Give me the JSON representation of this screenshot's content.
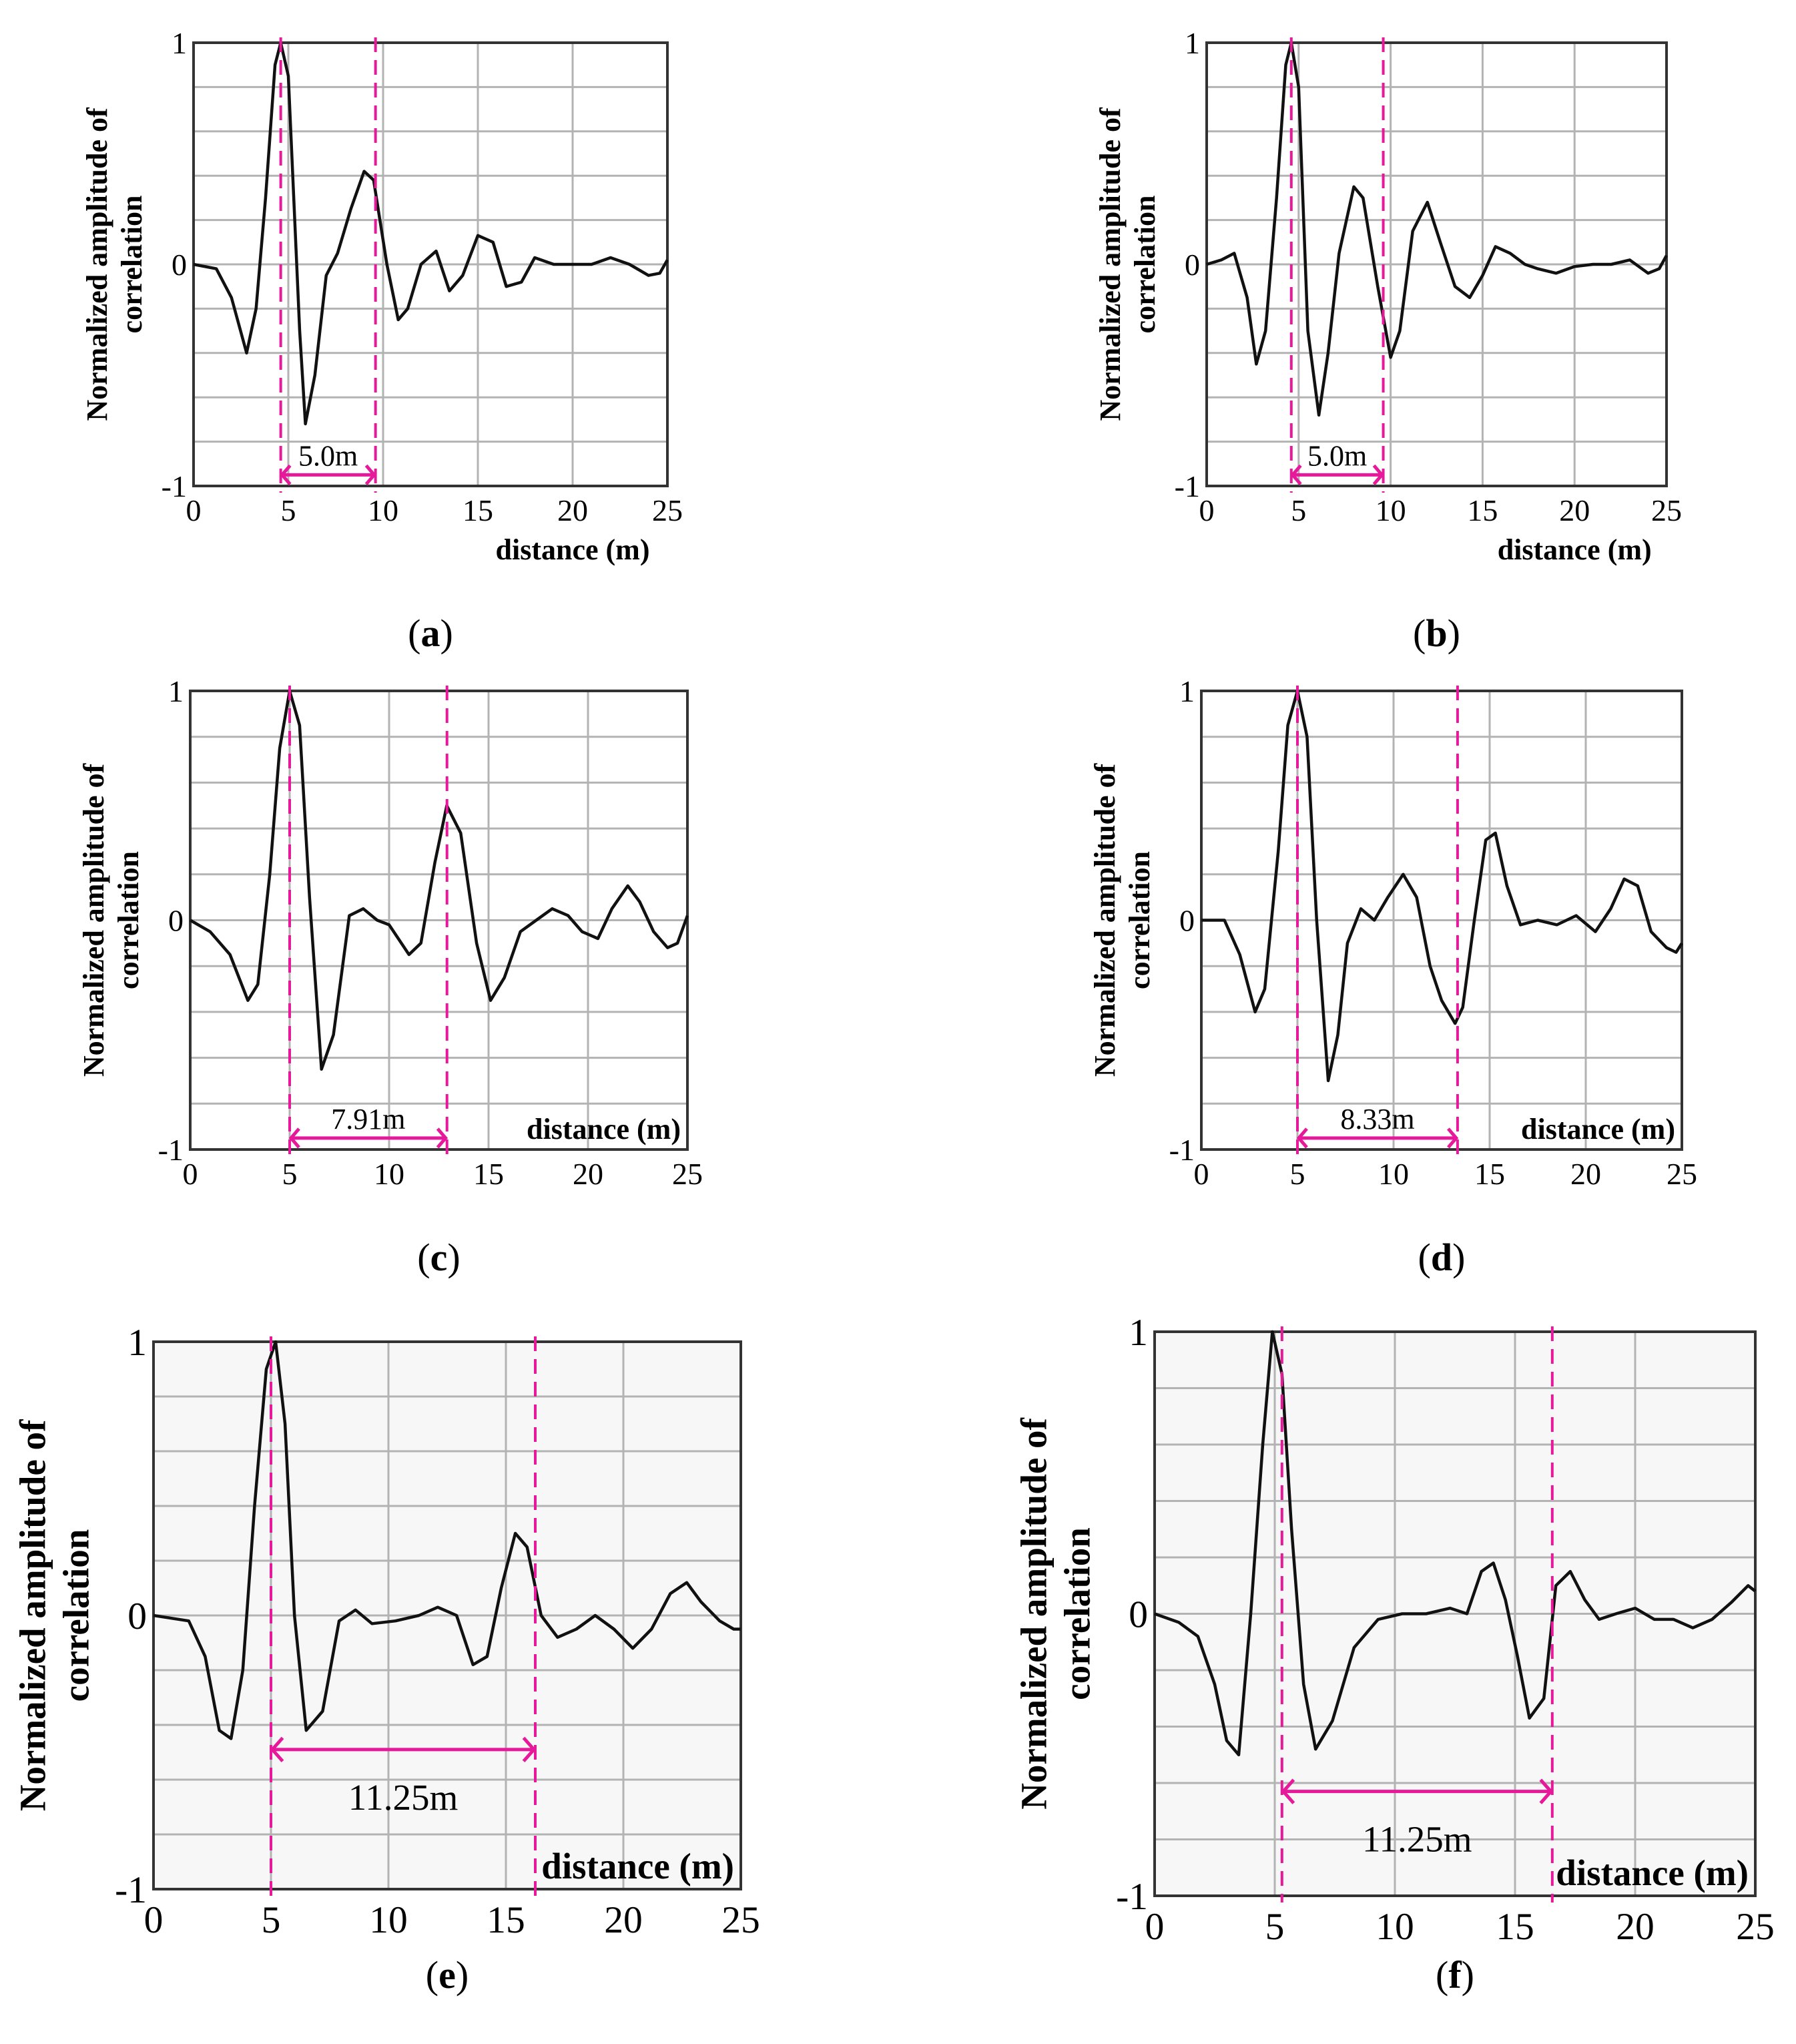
{
  "figure": {
    "colors": {
      "curve": "#111111",
      "marker": "#e6199a",
      "grid": "#b3b3b3",
      "frame": "#333333"
    }
  },
  "chart_data": [
    {
      "type": "line",
      "id": "a",
      "caption_letter": "a",
      "xlabel": "distance (m)",
      "ylabel_line1": "Normalized amplitude of",
      "ylabel_line2": "correlation",
      "xlim": [
        0,
        25
      ],
      "ylim": [
        -1,
        1
      ],
      "xticks": [
        "0",
        "5",
        "10",
        "15",
        "20",
        "25"
      ],
      "yticks": [
        "-1",
        "0",
        "1"
      ],
      "x": [
        0,
        1.2,
        2,
        2.8,
        3.3,
        3.8,
        4.3,
        4.6,
        5.0,
        5.6,
        5.9,
        6.4,
        7.0,
        7.6,
        8.3,
        9.0,
        9.5,
        10.2,
        10.8,
        11.3,
        12,
        12.8,
        13.5,
        14.2,
        15,
        15.8,
        16.5,
        17.3,
        18,
        19,
        20,
        21,
        22,
        23,
        24,
        24.6,
        25
      ],
      "y": [
        0,
        -0.02,
        -0.15,
        -0.4,
        -0.2,
        0.3,
        0.9,
        1.0,
        0.85,
        -0.3,
        -0.72,
        -0.5,
        -0.05,
        0.05,
        0.25,
        0.42,
        0.38,
        0.0,
        -0.25,
        -0.2,
        0.0,
        0.06,
        -0.12,
        -0.05,
        0.13,
        0.1,
        -0.1,
        -0.08,
        0.03,
        0.0,
        0.0,
        0.0,
        0.03,
        0.0,
        -0.05,
        -0.04,
        0.02
      ],
      "markers": [
        4.6,
        9.6
      ],
      "span_label": "5.0m",
      "span_y": -0.95
    },
    {
      "type": "line",
      "id": "b",
      "caption_letter": "b",
      "xlabel": "distance (m)",
      "ylabel_line1": "Normalized amplitude of",
      "ylabel_line2": "correlation",
      "xlim": [
        0,
        25
      ],
      "ylim": [
        -1,
        1
      ],
      "xticks": [
        "0",
        "5",
        "10",
        "15",
        "20",
        "25"
      ],
      "yticks": [
        "-1",
        "0",
        "1"
      ],
      "x": [
        0,
        0.8,
        1.5,
        2.2,
        2.7,
        3.2,
        3.8,
        4.3,
        4.6,
        5.0,
        5.5,
        6.1,
        6.6,
        7.2,
        8.0,
        8.5,
        9.3,
        10.0,
        10.5,
        11.2,
        12.0,
        12.7,
        13.5,
        14.3,
        15.0,
        15.7,
        16.5,
        17.3,
        18.0,
        19.0,
        20.0,
        21.0,
        22.0,
        23.0,
        24.0,
        24.6,
        25.0
      ],
      "y": [
        0,
        0.02,
        0.05,
        -0.15,
        -0.45,
        -0.3,
        0.3,
        0.9,
        1.0,
        0.8,
        -0.3,
        -0.68,
        -0.4,
        0.05,
        0.35,
        0.3,
        -0.1,
        -0.42,
        -0.3,
        0.15,
        0.28,
        0.1,
        -0.1,
        -0.15,
        -0.05,
        0.08,
        0.05,
        0.0,
        -0.02,
        -0.04,
        -0.01,
        0.0,
        0.0,
        0.02,
        -0.04,
        -0.02,
        0.04
      ],
      "markers": [
        4.6,
        9.6
      ],
      "span_label": "5.0m",
      "span_y": -0.95
    },
    {
      "type": "line",
      "id": "c",
      "caption_letter": "c",
      "xlabel": "distance (m)",
      "ylabel_line1": "Normalized amplitude of",
      "ylabel_line2": "correlation",
      "xlim": [
        0,
        25
      ],
      "ylim": [
        -1,
        1
      ],
      "xticks": [
        "0",
        "5",
        "10",
        "15",
        "20",
        "25"
      ],
      "yticks": [
        "-1",
        "0",
        "1"
      ],
      "x": [
        0,
        1.0,
        2.0,
        2.9,
        3.4,
        4.0,
        4.5,
        5.0,
        5.5,
        6.0,
        6.6,
        7.2,
        8.0,
        8.7,
        9.4,
        10.0,
        11.0,
        11.6,
        12.3,
        12.9,
        13.6,
        14.4,
        15.1,
        15.8,
        16.6,
        17.4,
        18.2,
        19.0,
        19.7,
        20.5,
        21.2,
        22.0,
        22.6,
        23.3,
        24.0,
        24.5,
        25.0
      ],
      "y": [
        0,
        -0.05,
        -0.15,
        -0.35,
        -0.28,
        0.2,
        0.75,
        1.0,
        0.85,
        0.1,
        -0.65,
        -0.5,
        0.02,
        0.05,
        0.0,
        -0.02,
        -0.15,
        -0.1,
        0.25,
        0.5,
        0.38,
        -0.1,
        -0.35,
        -0.25,
        -0.05,
        0.0,
        0.05,
        0.02,
        -0.05,
        -0.08,
        0.05,
        0.15,
        0.08,
        -0.05,
        -0.12,
        -0.1,
        0.02
      ],
      "markers": [
        5.0,
        12.91
      ],
      "span_label": "7.91m",
      "span_y": -0.95
    },
    {
      "type": "line",
      "id": "d",
      "caption_letter": "d",
      "xlabel": "distance (m)",
      "ylabel_line1": "Normalized amplitude of",
      "ylabel_line2": "correlation",
      "xlim": [
        0,
        25
      ],
      "ylim": [
        -1,
        1
      ],
      "xticks": [
        "0",
        "5",
        "10",
        "15",
        "20",
        "25"
      ],
      "yticks": [
        "-1",
        "0",
        "1"
      ],
      "x": [
        0,
        1.2,
        2.0,
        2.8,
        3.3,
        4.0,
        4.5,
        5.0,
        5.5,
        6.0,
        6.6,
        7.1,
        7.6,
        8.3,
        9.0,
        9.7,
        10.5,
        11.2,
        11.9,
        12.5,
        13.2,
        13.6,
        14.2,
        14.8,
        15.3,
        15.9,
        16.6,
        17.5,
        18.5,
        19.5,
        20.5,
        21.3,
        22.0,
        22.7,
        23.4,
        24.2,
        24.7,
        25.0
      ],
      "y": [
        0,
        0.0,
        -0.15,
        -0.4,
        -0.3,
        0.3,
        0.85,
        1.0,
        0.8,
        0.0,
        -0.7,
        -0.5,
        -0.1,
        0.05,
        0.0,
        0.1,
        0.2,
        0.1,
        -0.2,
        -0.35,
        -0.45,
        -0.38,
        0.0,
        0.35,
        0.38,
        0.15,
        -0.02,
        0.0,
        -0.02,
        0.02,
        -0.05,
        0.05,
        0.18,
        0.15,
        -0.05,
        -0.12,
        -0.14,
        -0.1
      ],
      "markers": [
        5.0,
        13.33
      ],
      "span_label": "8.33m",
      "span_y": -0.95
    },
    {
      "type": "line",
      "id": "e",
      "caption_letter": "e",
      "xlabel": "distance (m)",
      "ylabel_line1": "Normalized amplitude of",
      "ylabel_line2": "correlation",
      "xlim": [
        0,
        25
      ],
      "ylim": [
        -1,
        1
      ],
      "xticks": [
        "0",
        "5",
        "10",
        "15",
        "20",
        "25"
      ],
      "yticks": [
        "-1",
        "0",
        "1"
      ],
      "x": [
        0,
        1.5,
        2.2,
        2.8,
        3.3,
        3.8,
        4.3,
        4.8,
        5.2,
        5.6,
        6.0,
        6.5,
        7.2,
        7.9,
        8.6,
        9.3,
        10.3,
        11.3,
        12.1,
        12.9,
        13.6,
        14.2,
        14.8,
        15.4,
        15.9,
        16.5,
        17.2,
        18.0,
        18.8,
        19.6,
        20.4,
        21.2,
        22.0,
        22.7,
        23.3,
        24.1,
        24.7,
        25.0
      ],
      "y": [
        0,
        -0.02,
        -0.15,
        -0.42,
        -0.45,
        -0.2,
        0.4,
        0.9,
        1.0,
        0.7,
        0.0,
        -0.42,
        -0.35,
        -0.02,
        0.02,
        -0.03,
        -0.02,
        0.0,
        0.03,
        0.0,
        -0.18,
        -0.15,
        0.1,
        0.3,
        0.25,
        0.0,
        -0.08,
        -0.05,
        0.0,
        -0.05,
        -0.12,
        -0.05,
        0.08,
        0.12,
        0.05,
        -0.02,
        -0.05,
        -0.05
      ],
      "markers": [
        5.0,
        16.25
      ],
      "span_label": "11.25m",
      "span_y": -0.49
    },
    {
      "type": "line",
      "id": "f",
      "caption_letter": "f",
      "xlabel": "distance (m)",
      "ylabel_line1": "Normalized amplitude of",
      "ylabel_line2": "correlation",
      "xlim": [
        0,
        25
      ],
      "ylim": [
        -1,
        1
      ],
      "xticks": [
        "0",
        "5",
        "10",
        "15",
        "20",
        "25"
      ],
      "yticks": [
        "-1",
        "0",
        "1"
      ],
      "x": [
        0,
        1.0,
        1.8,
        2.5,
        3.0,
        3.5,
        4.0,
        4.5,
        4.9,
        5.3,
        5.7,
        6.2,
        6.7,
        7.4,
        8.3,
        9.3,
        10.3,
        11.3,
        12.3,
        13.0,
        13.6,
        14.1,
        14.6,
        15.1,
        15.6,
        16.2,
        16.7,
        17.3,
        17.9,
        18.5,
        19.2,
        20.0,
        20.8,
        21.6,
        22.4,
        23.2,
        24.0,
        24.7,
        25.0
      ],
      "y": [
        0,
        -0.03,
        -0.08,
        -0.25,
        -0.45,
        -0.5,
        0.0,
        0.6,
        1.0,
        0.85,
        0.3,
        -0.25,
        -0.48,
        -0.38,
        -0.12,
        -0.02,
        0.0,
        0.0,
        0.02,
        0.0,
        0.15,
        0.18,
        0.05,
        -0.15,
        -0.37,
        -0.3,
        0.1,
        0.15,
        0.05,
        -0.02,
        0.0,
        0.02,
        -0.02,
        -0.02,
        -0.05,
        -0.02,
        0.04,
        0.1,
        0.08
      ],
      "markers": [
        5.3,
        16.55
      ],
      "span_label": "11.25m",
      "span_y": -0.63
    }
  ]
}
